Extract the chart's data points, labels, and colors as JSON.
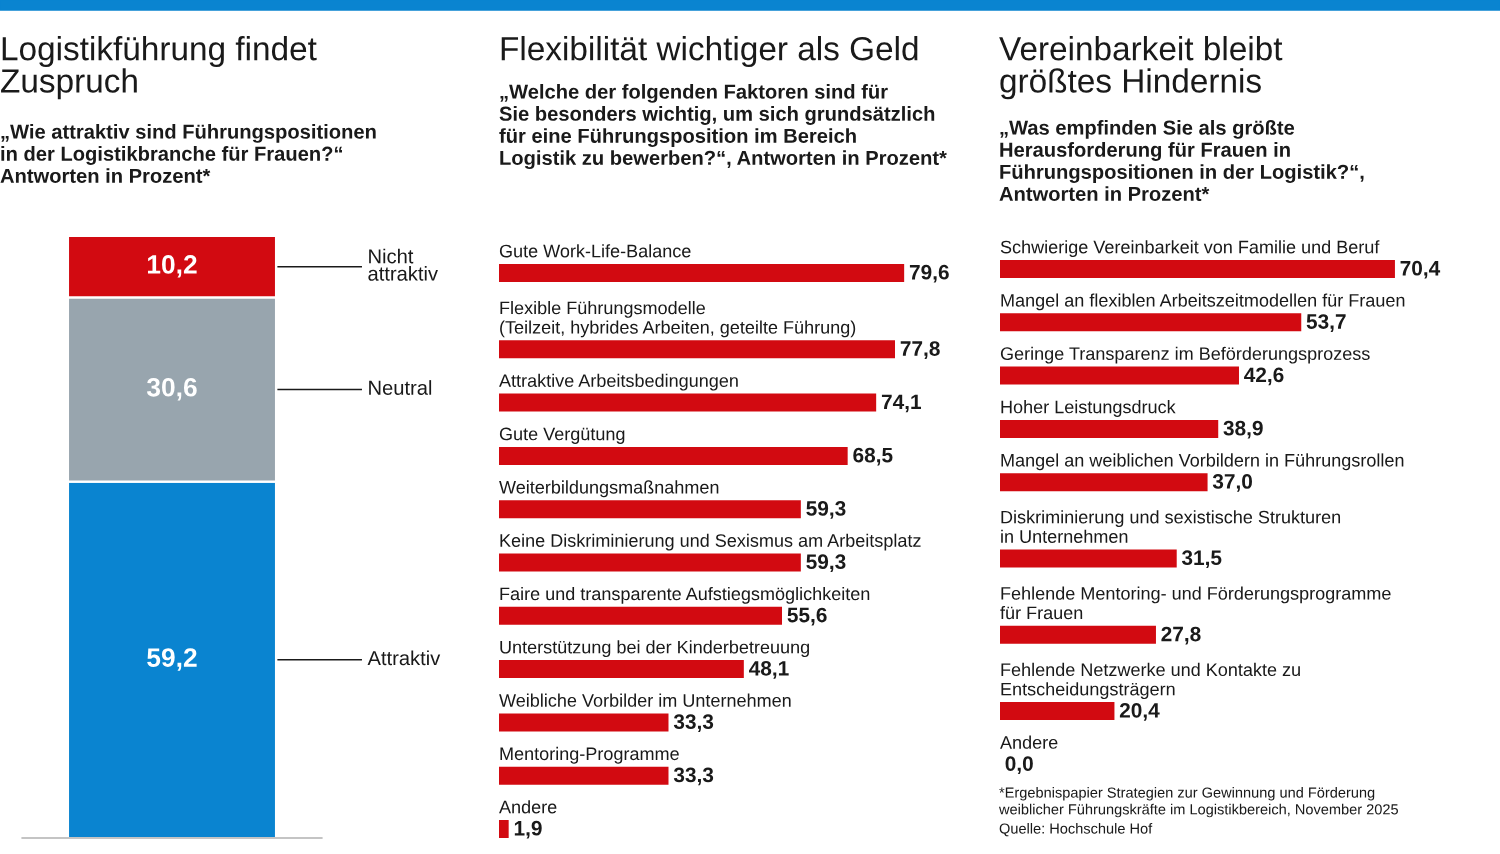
{
  "chart_data": [
    {
      "type": "bar",
      "stacked": true,
      "title": "Logistikführung findet\nZuspruch",
      "subtitle": "„Wie attraktiv sind Führungspositionen\nin der Logistikbranche für Frauen?“\nAntworten in Prozent*",
      "categories": [
        null
      ],
      "data_labels": true,
      "legend": false,
      "series": [
        {
          "name": "Attraktiv",
          "color": "#0a84d0",
          "values": [
            59.2
          ],
          "value_labels": [
            "59,2"
          ]
        },
        {
          "name": "Neutral",
          "color": "#98a5ae",
          "values": [
            30.6
          ],
          "value_labels": [
            "30,6"
          ]
        },
        {
          "name": "Nicht\nattraktiv",
          "color": "#d20a11",
          "values": [
            10.2
          ],
          "value_labels": [
            "10,2"
          ]
        }
      ]
    },
    {
      "type": "bar",
      "orientation": "horizontal",
      "title": "Flexibilität wichtiger als Geld",
      "subtitle": "„Welche der folgenden Faktoren sind für\nSie besonders wichtig, um sich grundsätzlich\nfür eine Führungsposition im Bereich\nLogistik zu bewerben?“, Antworten in Prozent*",
      "data_labels": true,
      "color": "#d20a11",
      "categories": [
        "Gute Work-Life-Balance",
        "Flexible Führungsmodelle\n(Teilzeit, hybrides Arbeiten, geteilte Führung)",
        "Attraktive Arbeitsbedingungen",
        "Gute Vergütung",
        "Weiterbildungsmaßnahmen",
        "Keine Diskriminierung und Sexismus am Arbeitsplatz",
        "Faire und transparente Aufstiegsmöglichkeiten",
        "Unterstützung bei der Kinderbetreuung",
        "Weibliche Vorbilder im Unternehmen",
        "Mentoring-Programme",
        "Andere"
      ],
      "values": [
        79.6,
        77.8,
        74.1,
        68.5,
        59.3,
        59.3,
        55.6,
        48.1,
        33.3,
        33.3,
        1.9
      ],
      "value_labels": [
        "79,6",
        "77,8",
        "74,1",
        "68,5",
        "59,3",
        "59,3",
        "55,6",
        "48,1",
        "33,3",
        "33,3",
        "1,9"
      ]
    },
    {
      "type": "bar",
      "orientation": "horizontal",
      "title": "Vereinbarkeit bleibt\ngrößtes Hindernis",
      "subtitle": "„Was empfinden Sie als größte\nHerausforderung für Frauen in\nFührungspositionen in der Logistik?“,\nAntworten in Prozent*",
      "data_labels": true,
      "color": "#d20a11",
      "categories": [
        "Schwierige Vereinbarkeit von Familie und Beruf",
        "Mangel an flexiblen Arbeitszeitmodellen für Frauen",
        "Geringe Transparenz im Beförderungsprozess",
        "Hoher Leistungsdruck",
        "Mangel an weiblichen Vorbildern in Führungsrollen",
        "Diskriminierung und sexistische Strukturen\nin Unternehmen",
        "Fehlende Mentoring- und Förderungsprogramme\nfür Frauen",
        "Fehlende Netzwerke und Kontakte zu\nEntscheidungsträgern",
        "Andere"
      ],
      "values": [
        70.4,
        53.7,
        42.6,
        38.9,
        37.0,
        31.5,
        27.8,
        20.4,
        0.0
      ],
      "value_labels": [
        "70,4",
        "53,7",
        "42,6",
        "38,9",
        "37,0",
        "31,5",
        "27,8",
        "20,4",
        "0,0"
      ],
      "annotations": [
        "*Ergebnispapier Strategien zur Gewinnung und Förderung\nweiblicher Führungskräfte im Logistikbereich, November 2025",
        "Quelle: Hochschule Hof"
      ]
    }
  ]
}
